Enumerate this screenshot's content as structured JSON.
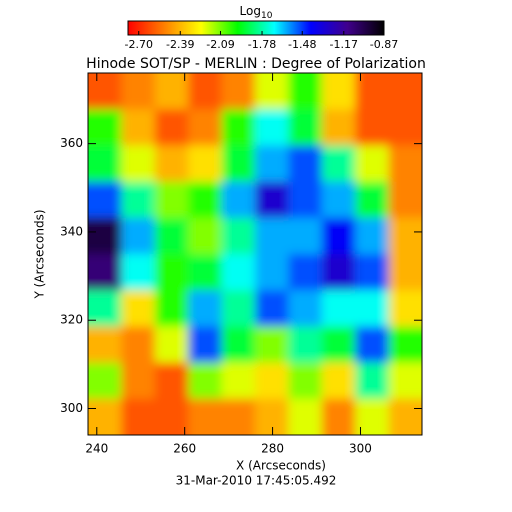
{
  "chart_data": {
    "type": "heatmap",
    "title": "Hinode SOT/SP - MERLIN : Degree of Polarization",
    "x_label": "X (Arcseconds)",
    "y_label": "Y (Arcseconds)",
    "footer": "31-Mar-2010 17:45:05.492",
    "colorbar_label": {
      "base": "Log",
      "subscript": "10"
    },
    "colorscale": [
      "#ff0000",
      "#ff8000",
      "#ffff00",
      "#00ff00",
      "#00ffff",
      "#0000ff",
      "#40008c",
      "#000000"
    ],
    "clim": [
      -2.78,
      -0.87
    ],
    "cticks": [
      {
        "value": -2.7,
        "label": "-2.70"
      },
      {
        "value": -2.39,
        "label": "-2.39"
      },
      {
        "value": -2.09,
        "label": "-2.09"
      },
      {
        "value": -1.78,
        "label": "-1.78"
      },
      {
        "value": -1.48,
        "label": "-1.48"
      },
      {
        "value": -1.17,
        "label": "-1.17"
      },
      {
        "value": -0.87,
        "label": "-0.87"
      }
    ],
    "xlim": [
      238,
      314
    ],
    "ylim": [
      294,
      376
    ],
    "xticks": [
      240,
      260,
      280,
      300
    ],
    "yticks": [
      300,
      320,
      340,
      360
    ],
    "x": [
      241.8,
      249.4,
      257,
      264.6,
      272.2,
      279.8,
      287.4,
      295,
      302.6,
      310.2
    ],
    "y": [
      371.9,
      363.7,
      355.5,
      347.3,
      339.1,
      330.9,
      322.7,
      314.5,
      306.3,
      298.1
    ],
    "z": [
      [
        -2.6,
        -2.5,
        -2.4,
        -2.6,
        -2.5,
        -2.2,
        -2.0,
        -2.3,
        -2.6,
        -2.6
      ],
      [
        -2.0,
        -2.4,
        -2.6,
        -2.5,
        -2.0,
        -1.7,
        -1.9,
        -2.4,
        -2.6,
        -2.6
      ],
      [
        -1.9,
        -2.2,
        -2.4,
        -2.3,
        -1.9,
        -1.6,
        -1.5,
        -1.8,
        -2.2,
        -2.5
      ],
      [
        -1.5,
        -1.8,
        -2.1,
        -2.0,
        -1.6,
        -1.3,
        -1.5,
        -1.6,
        -1.9,
        -2.5
      ],
      [
        -1.0,
        -1.6,
        -1.9,
        -2.1,
        -1.8,
        -1.6,
        -1.6,
        -1.4,
        -1.6,
        -2.4
      ],
      [
        -1.1,
        -1.7,
        -2.0,
        -1.9,
        -1.7,
        -1.6,
        -1.5,
        -1.3,
        -1.5,
        -2.4
      ],
      [
        -1.8,
        -2.3,
        -2.0,
        -1.6,
        -1.8,
        -1.5,
        -1.6,
        -1.7,
        -1.7,
        -2.3
      ],
      [
        -2.4,
        -2.5,
        -2.2,
        -1.5,
        -1.9,
        -2.1,
        -1.8,
        -1.9,
        -1.5,
        -2.0
      ],
      [
        -2.1,
        -2.5,
        -2.6,
        -2.1,
        -2.2,
        -2.3,
        -2.1,
        -2.3,
        -1.8,
        -2.2
      ],
      [
        -2.4,
        -2.6,
        -2.6,
        -2.5,
        -2.5,
        -2.4,
        -2.2,
        -2.5,
        -2.2,
        -2.4
      ]
    ]
  }
}
